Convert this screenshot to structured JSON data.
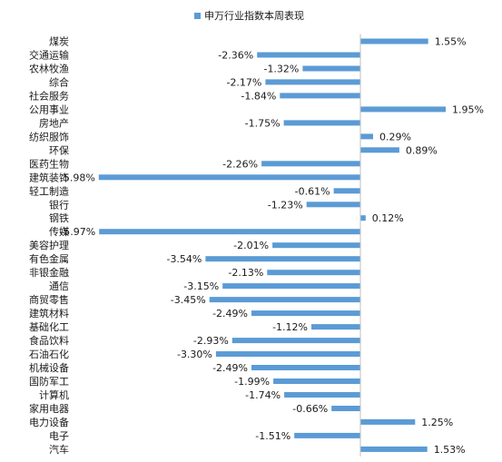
{
  "chart_data": {
    "type": "bar",
    "orientation": "horizontal",
    "title": "",
    "legend": {
      "position": "top-center",
      "entries": [
        "申万行业指数本周表现"
      ]
    },
    "series": [
      {
        "name": "申万行业指数本周表现",
        "color": "#5B9BD5",
        "values": [
          1.55,
          -2.36,
          -1.32,
          -2.17,
          -1.84,
          1.95,
          -1.75,
          0.29,
          0.89,
          -2.26,
          -5.98,
          -0.61,
          -1.23,
          0.12,
          -5.97,
          -2.01,
          -3.54,
          -2.13,
          -3.15,
          -3.45,
          -2.49,
          -1.12,
          -2.93,
          -3.3,
          -2.49,
          -1.99,
          -1.74,
          -0.66,
          1.25,
          -1.51,
          1.53
        ],
        "value_labels": [
          "1.55%",
          "-2.36%",
          "-1.32%",
          "-2.17%",
          "-1.84%",
          "1.95%",
          "-1.75%",
          "0.29%",
          "0.89%",
          "-2.26%",
          "-5.98%",
          "-0.61%",
          "-1.23%",
          "0.12%",
          "-5.97%",
          "-2.01%",
          "-3.54%",
          "-2.13%",
          "-3.15%",
          "-3.45%",
          "-2.49%",
          "-1.12%",
          "-2.93%",
          "-3.30%",
          "-2.49%",
          "-1.99%",
          "-1.74%",
          "-0.66%",
          "1.25%",
          "-1.51%",
          "1.53%"
        ]
      }
    ],
    "categories": [
      "煤炭",
      "交通运输",
      "农林牧渔",
      "综合",
      "社会服务",
      "公用事业",
      "房地产",
      "纺织服饰",
      "环保",
      "医药生物",
      "建筑装饰",
      "轻工制造",
      "银行",
      "钢铁",
      "传媒",
      "美容护理",
      "有色金属",
      "非银金融",
      "通信",
      "商贸零售",
      "建筑材料",
      "基础化工",
      "食品饮料",
      "石油石化",
      "机械设备",
      "国防军工",
      "计算机",
      "家用电器",
      "电力设备",
      "电子",
      "汽车"
    ],
    "xlim": [
      -6.5,
      2.5
    ],
    "xlabel": "",
    "ylabel": "",
    "grid": false
  }
}
